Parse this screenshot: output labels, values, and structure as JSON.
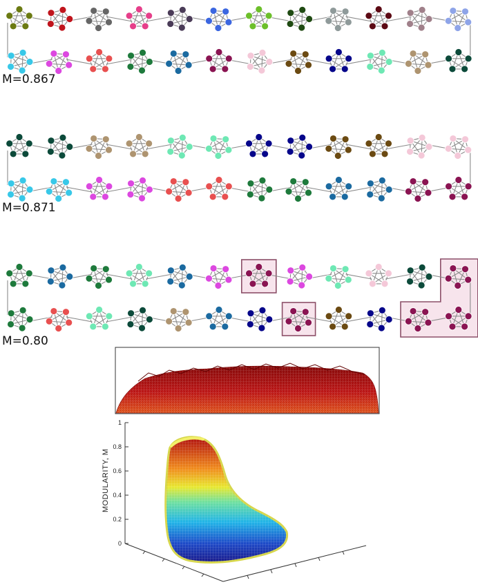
{
  "panels": [
    {
      "label": "M=0.867",
      "top_row": [
        "#6b7a12",
        "#c0141c",
        "#666666",
        "#e63f8a",
        "#4a3b57",
        "#3b66e0",
        "#6cbf2a",
        "#1f4a12",
        "#8f9a9a",
        "#5c0a14",
        "#a0808a",
        "#8ea4e8"
      ],
      "bottom_row": [
        "#38c8e8",
        "#dc48e0",
        "#e85050",
        "#1e7a3c",
        "#1b6aa0",
        "#8a1452",
        "#f4c8d8",
        "#6b4a12",
        "#06068a",
        "#6ee8b4",
        "#ae9470",
        "#0c4a3a"
      ]
    },
    {
      "label": "M=0.871",
      "top_row": [
        "#0c4a3a",
        "#0c4a3a",
        "#ae9470",
        "#ae9470",
        "#6ee8b4",
        "#6ee8b4",
        "#06068a",
        "#06068a",
        "#6b4a12",
        "#6b4a12",
        "#f4c8d8",
        "#f4c8d8"
      ],
      "bottom_row": [
        "#38c8e8",
        "#38c8e8",
        "#dc48e0",
        "#dc48e0",
        "#e85050",
        "#e85050",
        "#1e7a3c",
        "#1e7a3c",
        "#1b6aa0",
        "#1b6aa0",
        "#8a1452",
        "#8a1452"
      ]
    },
    {
      "label": "M=0.80",
      "top_row": [
        "#1e7a3c",
        "#1b6aa0",
        "#1e7a3c",
        "#6ee8b4",
        "#1b6aa0",
        "#dc48e0",
        "#8a1452",
        "#dc48e0",
        "#6ee8b4",
        "#f4c8d8",
        "#0c4a3a",
        "#8a1452"
      ],
      "bottom_row": [
        "#1e7a3c",
        "#e85050",
        "#6ee8b4",
        "#0c4a3a",
        "#ae9470",
        "#1b6aa0",
        "#06068a",
        "#8a1452",
        "#6b4a12",
        "#06068a",
        "#8a1452",
        "#8a1452"
      ],
      "highlighted_top": [
        6,
        11
      ],
      "highlighted_bottom": [
        7,
        10,
        11
      ]
    }
  ],
  "surface_plot": {
    "z_axis_label": "MODULARITY, M",
    "z_ticks": [
      "0",
      "0.2",
      "0.4",
      "0.6",
      "0.8",
      "1"
    ],
    "z_range": [
      0,
      1
    ],
    "colormap": "jet"
  },
  "colors": {
    "edge": "#8a8a8a",
    "highlight_fill": "#f7e4ec",
    "highlight_stroke": "#8c4f68",
    "wireframe": "#a01010"
  }
}
